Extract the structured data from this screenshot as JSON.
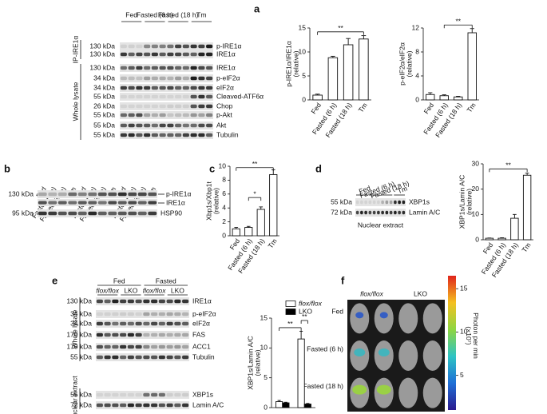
{
  "chart_data": [
    {
      "type": "bar",
      "ylabel": "p-IRE1α/IRE1α",
      "ylabel_note": "(relative)",
      "categories": [
        "Fed",
        "Fasted (6 h)",
        "Fasted (18 h)",
        "Tm"
      ],
      "values": [
        1,
        8.8,
        11.5,
        12.7
      ],
      "errors": [
        0.2,
        0.3,
        1.3,
        0.7
      ],
      "color": "#ffffff",
      "ylim": [
        0,
        15
      ],
      "yticks": [
        0,
        5,
        10,
        15
      ],
      "annotations": [
        "**"
      ]
    },
    {
      "type": "bar",
      "ylabel": "p-eIF2α/eIF2α",
      "ylabel_note": "(relative)",
      "categories": [
        "Fed",
        "Fasted (6 h)",
        "Fasted (18 h)",
        "Tm"
      ],
      "values": [
        0.9,
        0.7,
        0.5,
        11.2
      ],
      "errors": [
        0.3,
        0.15,
        0.1,
        0.7
      ],
      "color": "#ffffff",
      "ylim": [
        0,
        12
      ],
      "yticks": [
        0,
        4,
        8,
        12
      ],
      "annotations": [
        "**"
      ]
    },
    {
      "type": "bar",
      "ylabel": "Xbp1s/Xbp1t",
      "ylabel_note": "(relative)",
      "categories": [
        "Fed",
        "Fasted (6 h)",
        "Fasted (18 h)",
        "Tm"
      ],
      "values": [
        1,
        1.2,
        3.8,
        8.8
      ],
      "errors": [
        0.2,
        0.15,
        0.35,
        0.7
      ],
      "color": "#ffffff",
      "ylim": [
        0,
        10
      ],
      "yticks": [
        0,
        2,
        4,
        6,
        8,
        10
      ],
      "annotations": [
        "*",
        "**"
      ]
    },
    {
      "type": "bar",
      "ylabel": "XBP1s/Lamin A/C",
      "ylabel_note": "(relative)",
      "categories": [
        "Fed",
        "Fasted (6 h)",
        "Fasted (18 h)",
        "Tm"
      ],
      "values": [
        0.6,
        0.6,
        8.5,
        25.5
      ],
      "errors": [
        0.1,
        0.2,
        1.5,
        0.8
      ],
      "color": "#ffffff",
      "ylim": [
        0,
        30
      ],
      "yticks": [
        0,
        10,
        20,
        30
      ],
      "annotations": [
        "**"
      ]
    },
    {
      "type": "bar",
      "ylabel": "XBP1s/Lamin A/C",
      "ylabel_note": "(relative)",
      "categories": [
        null,
        null
      ],
      "series": [
        {
          "name": "flox/flox",
          "color": "#ffffff",
          "values": [
            1,
            11.5
          ],
          "errors": [
            0.2,
            1.3
          ]
        },
        {
          "name": "LKO",
          "color": "#000000",
          "values": [
            0.8,
            0.6
          ],
          "errors": [
            0.1,
            0.1
          ]
        }
      ],
      "ylim": [
        0,
        15
      ],
      "yticks": [
        0,
        5,
        10,
        15
      ],
      "annotations": [
        "**",
        "**"
      ]
    }
  ],
  "panel_letters": [
    "a",
    "b",
    "c",
    "d",
    "e",
    "f"
  ],
  "blots": {
    "a": {
      "groups": [
        "Fed",
        "Fasted (6 h)",
        "Fasted (18 h)",
        "Tm"
      ],
      "sections": [
        "IP-IRE1α",
        "Whole lysate"
      ],
      "rows": [
        {
          "kda": "130 kDa",
          "label": "p-IRE1α"
        },
        {
          "kda": "130 kDa",
          "label": "IRE1α"
        },
        {
          "kda": "130 kDa",
          "label": "IRE1α"
        },
        {
          "kda": "34 kDa",
          "label": "p-eIF2α"
        },
        {
          "kda": "34 kDa",
          "label": "eIF2α"
        },
        {
          "kda": "55 kDa",
          "label": "Cleaved-ATF6α"
        },
        {
          "kda": "26 kDa",
          "label": "Chop"
        },
        {
          "kda": "55 kDa",
          "label": "p-Akt"
        },
        {
          "kda": "55 kDa",
          "label": "Akt"
        },
        {
          "kda": "55 kDa",
          "label": "Tubulin"
        }
      ]
    },
    "b": {
      "lanes": [
        "Fed",
        "Fasted (6 h)",
        "Fasted (18 h)",
        "Tm",
        "Fed",
        "Fasted (6 h)",
        "Fasted (18 h)",
        "Tm",
        "Fed",
        "Fasted (6 h)",
        "Fasted (18 h)",
        "Tm"
      ],
      "kda": [
        "130 kDa",
        "95 kDa"
      ],
      "labels": [
        "p-IRE1α",
        "IRE1α",
        "HSP90"
      ]
    },
    "d": {
      "groups": [
        "Fed",
        "Fasted (6 h)",
        "Fasted (18 h)",
        "Tm"
      ],
      "rows": [
        {
          "kda": "55 kDa",
          "label": "XBP1s"
        },
        {
          "kda": "72 kDa",
          "label": "Lamin A/C"
        }
      ],
      "caption": "Nuclear extract"
    },
    "e": {
      "groups": [
        "Fed",
        "Fasted"
      ],
      "genotypes": [
        "flox/flox",
        "LKO",
        "flox/flox",
        "LKO"
      ],
      "sections": [
        "Whole lysate",
        "Nuclear extract"
      ],
      "rows": [
        {
          "kda": "130 kDa",
          "label": "IRE1α"
        },
        {
          "kda": "34 kDa",
          "label": "p-eIF2α"
        },
        {
          "kda": "34 kDa",
          "label": "eIF2α"
        },
        {
          "kda": "170 kDa",
          "label": "FAS"
        },
        {
          "kda": "170 kDa",
          "label": "ACC1"
        },
        {
          "kda": "55 kDa",
          "label": "Tubulin"
        },
        {
          "kda": "55 kDa",
          "label": "XBP1s"
        },
        {
          "kda": "72 kDa",
          "label": "Lamin A/C"
        }
      ]
    },
    "f": {
      "genotypes": [
        "flox/flox",
        "LKO"
      ],
      "rows": [
        "Fed",
        "Fasted (6 h)",
        "Fasted (18 h)"
      ],
      "colorbar": {
        "lim": [
          1,
          16.5
        ],
        "ticks": [
          5,
          10,
          15
        ],
        "label": "Photon per min",
        "unit": "(×10⁷)"
      }
    }
  }
}
